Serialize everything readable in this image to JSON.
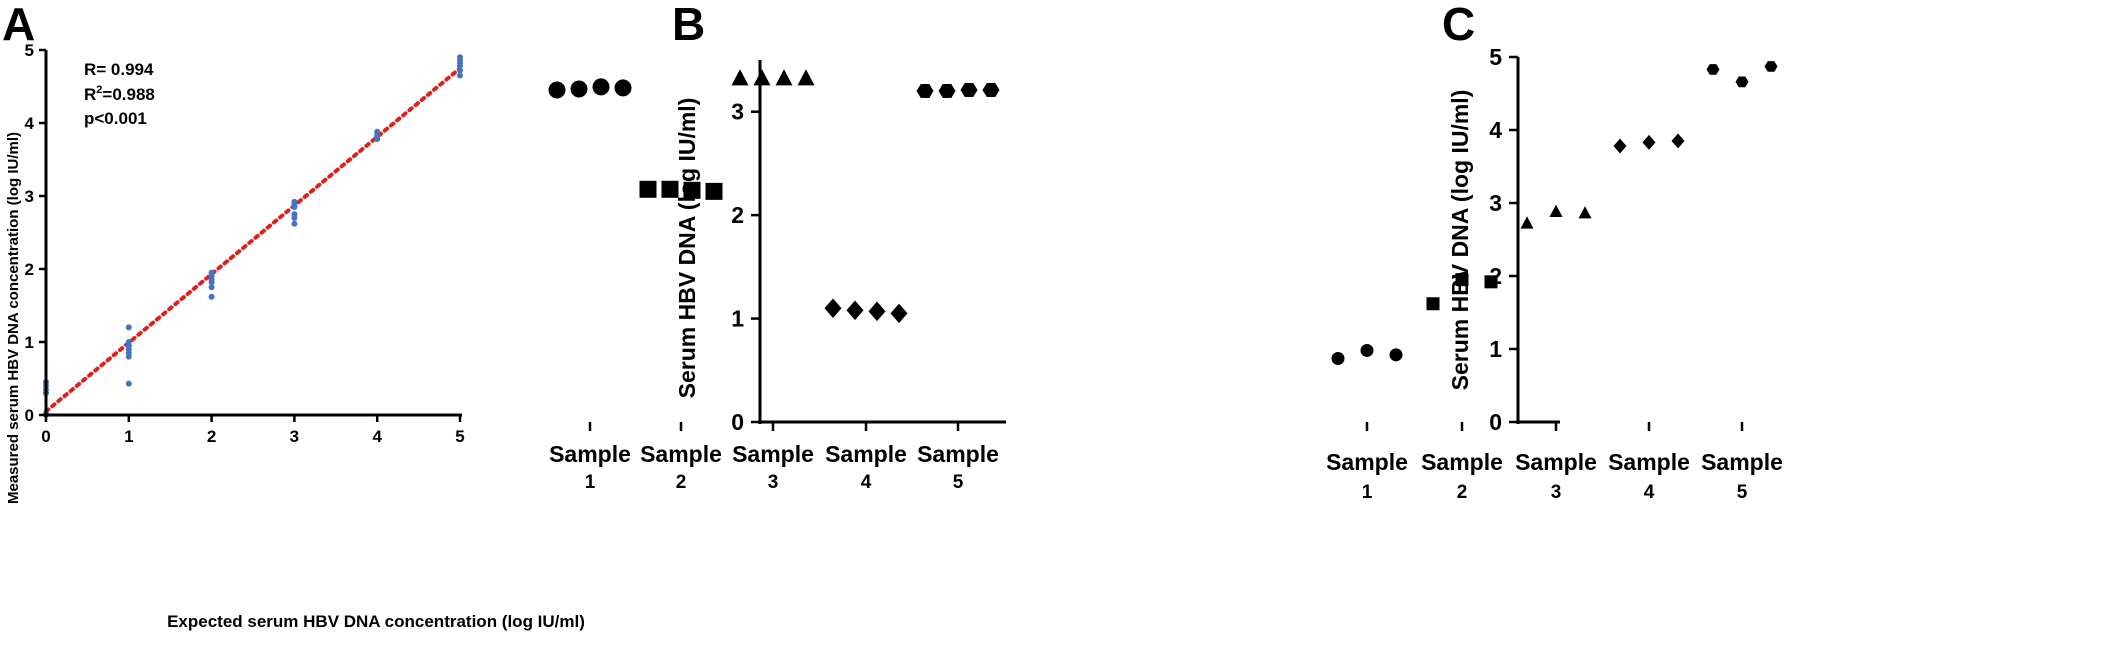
{
  "chart_data": [
    {
      "panel_label": "A",
      "type": "scatter",
      "xlabel": "Expected serum HBV DNA concentration (log IU/ml)",
      "ylabel": "Measured serum HBV DNA concentration (log IU/ml)",
      "xlim": [
        0,
        5
      ],
      "ylim": [
        0,
        5
      ],
      "x_ticks": [
        "0",
        "1",
        "2",
        "3",
        "4",
        "5"
      ],
      "y_ticks": [
        "0",
        "1",
        "2",
        "3",
        "4",
        "5"
      ],
      "stats": {
        "r": "R= 0.994",
        "r2_prefix": "R",
        "r2_sup": "2",
        "r2_suffix": "=0.988",
        "p": "p<0.001"
      },
      "point_color": "#4472c4",
      "fit_line_color": "#e0201b",
      "fit_line": {
        "x": [
          0,
          5
        ],
        "y": [
          0.05,
          4.75
        ]
      },
      "points": [
        {
          "x": 0,
          "y": 0.0
        },
        {
          "x": 0,
          "y": 0.02
        },
        {
          "x": 0,
          "y": 0.3
        },
        {
          "x": 0,
          "y": 0.35
        },
        {
          "x": 0,
          "y": 0.4
        },
        {
          "x": 0,
          "y": 0.45
        },
        {
          "x": 1,
          "y": 0.43
        },
        {
          "x": 1,
          "y": 0.8
        },
        {
          "x": 1,
          "y": 0.85
        },
        {
          "x": 1,
          "y": 0.9
        },
        {
          "x": 1,
          "y": 0.95
        },
        {
          "x": 1,
          "y": 1.0
        },
        {
          "x": 1,
          "y": 1.2
        },
        {
          "x": 2,
          "y": 1.62
        },
        {
          "x": 2,
          "y": 1.75
        },
        {
          "x": 2,
          "y": 1.82
        },
        {
          "x": 2,
          "y": 1.86
        },
        {
          "x": 2,
          "y": 1.9
        },
        {
          "x": 2,
          "y": 1.95
        },
        {
          "x": 3,
          "y": 2.62
        },
        {
          "x": 3,
          "y": 2.7
        },
        {
          "x": 3,
          "y": 2.75
        },
        {
          "x": 3,
          "y": 2.85
        },
        {
          "x": 3,
          "y": 2.88
        },
        {
          "x": 3,
          "y": 2.92
        },
        {
          "x": 4,
          "y": 3.78
        },
        {
          "x": 4,
          "y": 3.82
        },
        {
          "x": 4,
          "y": 3.86
        },
        {
          "x": 4,
          "y": 3.88
        },
        {
          "x": 5,
          "y": 4.65
        },
        {
          "x": 5,
          "y": 4.72
        },
        {
          "x": 5,
          "y": 4.78
        },
        {
          "x": 5,
          "y": 4.82
        },
        {
          "x": 5,
          "y": 4.86
        },
        {
          "x": 5,
          "y": 4.9
        }
      ]
    },
    {
      "panel_label": "B",
      "type": "scatter",
      "ylabel": "Serum HBV DNA (log IU/ml)",
      "ylim": [
        0,
        3.5
      ],
      "y_ticks": [
        "0",
        "1",
        "2",
        "3"
      ],
      "categories": [
        {
          "name": "Sample",
          "num": "1",
          "marker": "circle",
          "values": [
            3.21,
            3.22,
            3.24,
            3.23
          ]
        },
        {
          "name": "Sample",
          "num": "2",
          "marker": "square",
          "values": [
            2.25,
            2.25,
            2.24,
            2.23
          ]
        },
        {
          "name": "Sample",
          "num": "3",
          "marker": "triangle",
          "values": [
            3.32,
            3.32,
            3.32,
            3.32
          ]
        },
        {
          "name": "Sample",
          "num": "4",
          "marker": "diamond",
          "values": [
            1.1,
            1.08,
            1.07,
            1.05
          ]
        },
        {
          "name": "Sample",
          "num": "5",
          "marker": "hexagon",
          "values": [
            3.2,
            3.2,
            3.21,
            3.21
          ]
        }
      ]
    },
    {
      "panel_label": "C",
      "type": "scatter",
      "ylabel": "Serum HBV DNA (log IU/ml)",
      "ylim": [
        0,
        5
      ],
      "y_ticks": [
        "0",
        "1",
        "2",
        "3",
        "4",
        "5"
      ],
      "categories": [
        {
          "name": "Sample",
          "num": "1",
          "marker": "circle",
          "values": [
            0.87,
            0.98,
            0.92
          ]
        },
        {
          "name": "Sample",
          "num": "2",
          "marker": "square",
          "values": [
            1.62,
            1.95,
            1.92
          ]
        },
        {
          "name": "Sample",
          "num": "3",
          "marker": "triangle",
          "values": [
            2.72,
            2.88,
            2.86
          ]
        },
        {
          "name": "Sample",
          "num": "4",
          "marker": "diamond",
          "values": [
            3.78,
            3.83,
            3.85
          ]
        },
        {
          "name": "Sample",
          "num": "5",
          "marker": "hexagon",
          "values": [
            4.83,
            4.66,
            4.87
          ]
        }
      ]
    }
  ]
}
